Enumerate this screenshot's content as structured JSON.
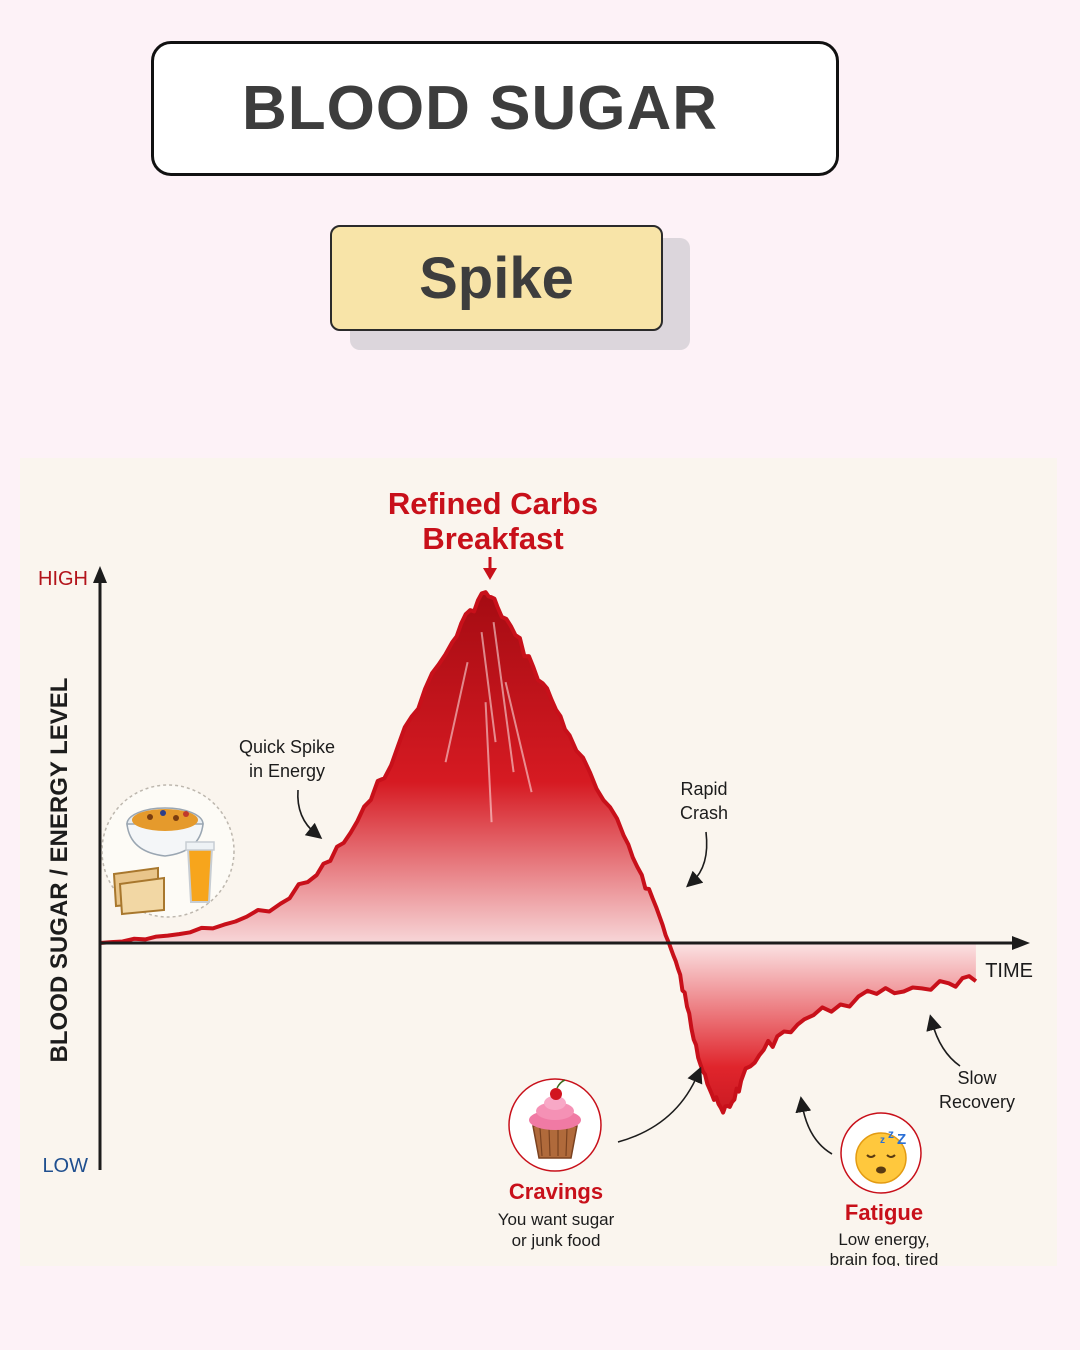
{
  "header": {
    "title": "BLOOD SUGAR",
    "subtitle": "Spike"
  },
  "chart_data": {
    "type": "area",
    "title": "Refined Carbs Breakfast",
    "title_lines": [
      "Refined Carbs",
      "Breakfast"
    ],
    "ylabel": "BLOOD SUGAR / ENERGY LEVEL",
    "xlabel": "TIME",
    "y_high_label": "HIGH",
    "y_low_label": "LOW",
    "ylim": [
      -100,
      100
    ],
    "xlim": [
      0,
      100
    ],
    "series": [
      {
        "values": [
          [
            0,
            0
          ],
          [
            5,
            1
          ],
          [
            10,
            3
          ],
          [
            15,
            6
          ],
          [
            20,
            11
          ],
          [
            24,
            19
          ],
          [
            27,
            28
          ],
          [
            30,
            40
          ],
          [
            33,
            55
          ],
          [
            36,
            71
          ],
          [
            39,
            84
          ],
          [
            41,
            93
          ],
          [
            42.7,
            98
          ],
          [
            44,
            94
          ],
          [
            46,
            86
          ],
          [
            48,
            77
          ],
          [
            50,
            68
          ],
          [
            52,
            58
          ],
          [
            55,
            43
          ],
          [
            58,
            30
          ],
          [
            60,
            19
          ],
          [
            61.6,
            10
          ],
          [
            63,
            0
          ],
          [
            64,
            -12
          ],
          [
            65,
            -30
          ],
          [
            66,
            -48
          ],
          [
            67,
            -62
          ],
          [
            68,
            -74
          ],
          [
            69,
            -80
          ],
          [
            70,
            -75
          ],
          [
            71,
            -65
          ],
          [
            73,
            -53
          ],
          [
            75,
            -44
          ],
          [
            78,
            -36
          ],
          [
            82,
            -29
          ],
          [
            86,
            -24
          ],
          [
            90,
            -21
          ],
          [
            94,
            -19
          ],
          [
            97,
            -18
          ]
        ]
      }
    ],
    "annotations": [
      {
        "id": "quick_spike",
        "lines": [
          "Quick Spike",
          "in Energy"
        ]
      },
      {
        "id": "rapid_crash",
        "lines": [
          "Rapid",
          "Crash"
        ]
      },
      {
        "id": "slow_recovery",
        "lines": [
          "Slow",
          "Recovery"
        ]
      },
      {
        "id": "cravings",
        "title": "Cravings",
        "lines": [
          "You want sugar",
          "or junk food"
        ]
      },
      {
        "id": "fatigue",
        "title": "Fatigue",
        "lines": [
          "Low energy,",
          "brain fog, tired"
        ]
      }
    ],
    "colors": {
      "curve": "#c8101a",
      "high": "#b3141b",
      "low": "#1f4f8f",
      "axis": "#1c1c1c"
    },
    "icons": [
      "breakfast-icon",
      "cupcake-icon",
      "sleepy-face-icon"
    ]
  }
}
